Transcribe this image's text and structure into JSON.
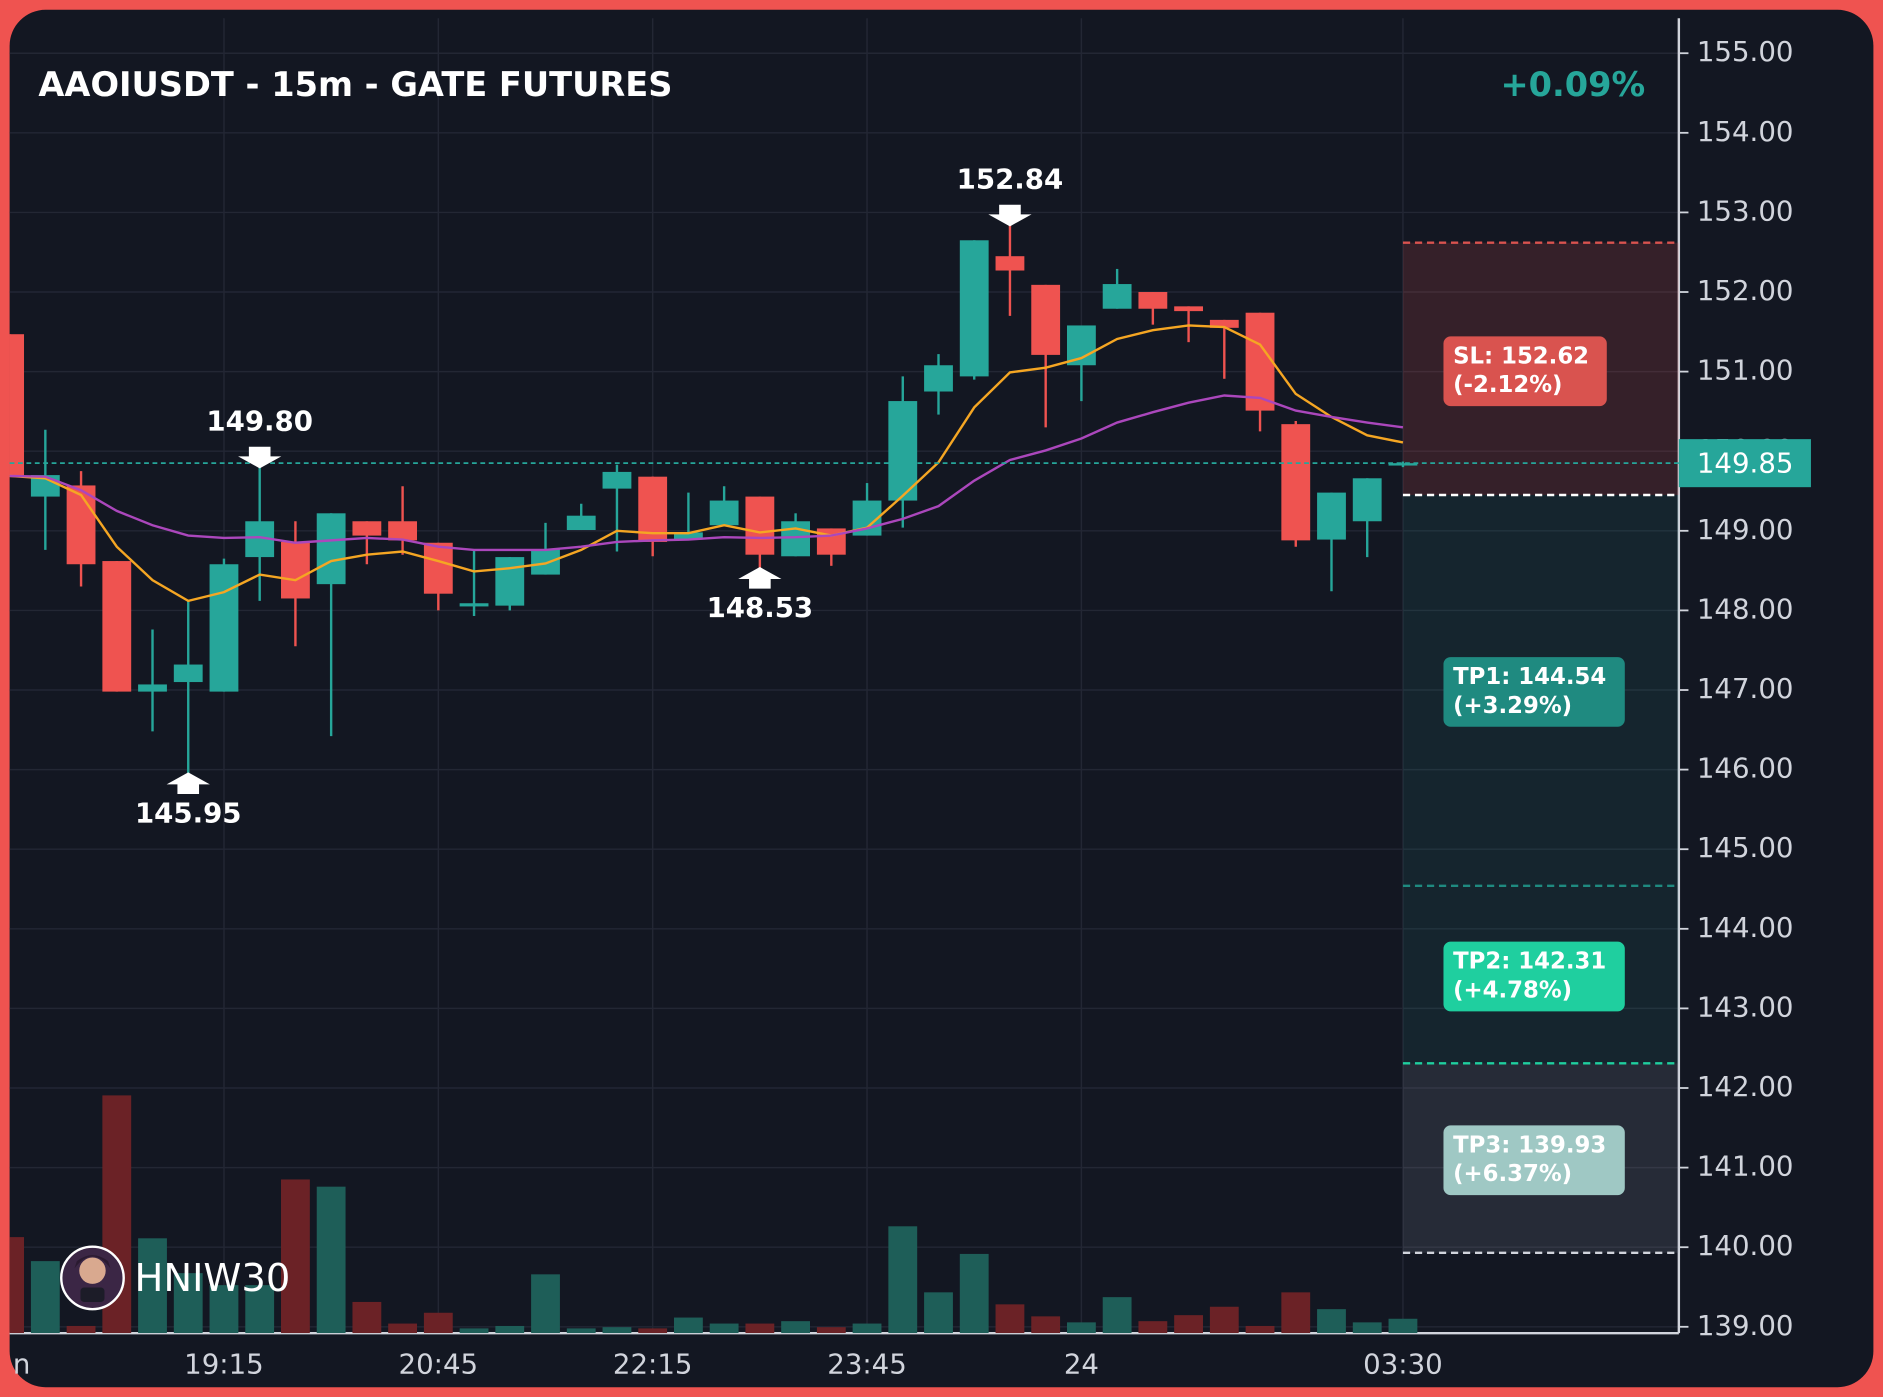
{
  "chart_data": {
    "type": "candlestick",
    "title": "AAOIUSDT - 15m - GATE FUTURES",
    "change": "+0.09%",
    "watermark": "HNIW30",
    "categories": [
      "n",
      null,
      null,
      null,
      null,
      null,
      "19:15",
      null,
      null,
      null,
      null,
      null,
      "20:45",
      null,
      null,
      null,
      null,
      null,
      "22:15",
      null,
      null,
      null,
      null,
      null,
      "23:45",
      null,
      null,
      null,
      null,
      null,
      "24",
      null,
      null,
      null,
      null,
      null,
      null,
      null,
      null,
      "03:30"
    ],
    "open": [
      151.47,
      149.43,
      149.57,
      148.62,
      146.98,
      147.1,
      146.98,
      148.67,
      148.86,
      148.33,
      149.12,
      149.12,
      148.85,
      148.05,
      148.06,
      148.45,
      149.01,
      149.53,
      149.68,
      148.89,
      149.07,
      149.43,
      148.68,
      149.03,
      148.94,
      149.38,
      150.75,
      150.94,
      152.45,
      152.09,
      151.08,
      151.79,
      152.0,
      151.82,
      151.65,
      151.74,
      150.34,
      148.89,
      149.12,
      149.82
    ],
    "high": [
      151.47,
      150.27,
      149.75,
      148.62,
      147.76,
      148.12,
      148.65,
      149.8,
      149.12,
      149.22,
      149.12,
      149.56,
      148.85,
      148.76,
      148.67,
      149.1,
      149.34,
      149.83,
      149.68,
      149.48,
      149.56,
      149.43,
      149.22,
      149.03,
      149.6,
      150.94,
      151.22,
      152.65,
      152.84,
      152.09,
      151.58,
      152.29,
      152.0,
      151.82,
      151.65,
      151.74,
      150.38,
      149.48,
      149.66,
      149.87
    ],
    "low": [
      149.7,
      148.76,
      148.3,
      146.98,
      146.48,
      145.95,
      146.98,
      148.12,
      147.55,
      146.42,
      148.58,
      148.7,
      148.0,
      147.93,
      148.0,
      148.45,
      149.01,
      148.74,
      148.68,
      148.89,
      149.07,
      148.53,
      148.68,
      148.56,
      148.94,
      149.04,
      150.46,
      150.9,
      151.7,
      150.3,
      150.63,
      151.79,
      151.59,
      151.37,
      150.91,
      150.25,
      148.8,
      148.24,
      148.67,
      149.8
    ],
    "close": [
      149.7,
      149.7,
      148.58,
      146.98,
      147.07,
      147.32,
      148.58,
      149.12,
      148.15,
      149.22,
      148.94,
      148.88,
      148.21,
      148.09,
      148.67,
      148.77,
      149.19,
      149.74,
      148.86,
      148.98,
      149.38,
      148.7,
      149.12,
      148.7,
      149.38,
      150.63,
      151.08,
      152.65,
      152.27,
      151.21,
      151.58,
      152.1,
      151.79,
      151.76,
      151.55,
      150.51,
      148.88,
      149.48,
      149.66,
      149.85
    ],
    "up_color": "#26a69a",
    "down_color": "#ef5350",
    "ma": [
      {
        "color": "#f5a623",
        "values": [
          149.69,
          149.66,
          149.45,
          148.8,
          148.38,
          148.12,
          148.23,
          148.45,
          148.38,
          148.62,
          148.7,
          148.74,
          148.62,
          148.49,
          148.53,
          148.59,
          148.76,
          149.0,
          148.97,
          148.97,
          149.07,
          148.98,
          149.03,
          148.94,
          149.04,
          149.44,
          149.86,
          150.55,
          150.99,
          151.05,
          151.17,
          151.41,
          151.52,
          151.58,
          151.56,
          151.34,
          150.72,
          150.43,
          150.2,
          150.11
        ]
      },
      {
        "color": "#ab47bc",
        "values": [
          149.69,
          149.68,
          149.51,
          149.25,
          149.07,
          148.94,
          148.91,
          148.92,
          148.85,
          148.88,
          148.91,
          148.89,
          148.8,
          148.76,
          148.76,
          148.76,
          148.8,
          148.86,
          148.88,
          148.89,
          148.92,
          148.91,
          148.92,
          148.94,
          149.03,
          149.15,
          149.31,
          149.63,
          149.89,
          150.01,
          150.16,
          150.36,
          150.49,
          150.61,
          150.7,
          150.67,
          150.51,
          150.43,
          150.36,
          150.3
        ]
      }
    ],
    "volume": {
      "up_color": "#1e5e58",
      "down_color": "#6b2226",
      "values": [
        80,
        60,
        6,
        198,
        79,
        50,
        40,
        40,
        128,
        122,
        26,
        8,
        17,
        4,
        6,
        49,
        4,
        5,
        4,
        13,
        8,
        8,
        10,
        5,
        8,
        89,
        34,
        66,
        24,
        14,
        9,
        30,
        10,
        15,
        22,
        6,
        34,
        20,
        9,
        12
      ]
    },
    "ylim": [
      138.92,
      155.44
    ],
    "yticks": [
      {
        "value": 139,
        "label": "139.00"
      },
      {
        "value": 140,
        "label": "140.00"
      },
      {
        "value": 141,
        "label": "141.00"
      },
      {
        "value": 142,
        "label": "142.00"
      },
      {
        "value": 143,
        "label": "143.00"
      },
      {
        "value": 144,
        "label": "144.00"
      },
      {
        "value": 145,
        "label": "145.00"
      },
      {
        "value": 146,
        "label": "146.00"
      },
      {
        "value": 147,
        "label": "147.00"
      },
      {
        "value": 148,
        "label": "148.00"
      },
      {
        "value": 149,
        "label": "149.00"
      },
      {
        "value": 150,
        "label": "150.00"
      },
      {
        "value": 151,
        "label": "151.00"
      },
      {
        "value": 152,
        "label": "152.00"
      },
      {
        "value": 153,
        "label": "153.00"
      },
      {
        "value": 154,
        "label": "154.00"
      },
      {
        "value": 155,
        "label": "155.00"
      }
    ],
    "grid": true,
    "last_price": {
      "value": 149.85,
      "label": "149.85",
      "color": "#26a69a"
    },
    "entry": 149.45,
    "stop": {
      "price": 152.62,
      "label": "SL: 152.62",
      "pct": "(-2.12%)",
      "color": "#d9534f"
    },
    "targets": [
      {
        "price": 144.54,
        "label": "TP1: 144.54",
        "pct": "(+3.29%)",
        "color": "#1f8a80"
      },
      {
        "price": 142.31,
        "label": "TP2: 142.31",
        "pct": "(+4.78%)",
        "color": "#1fcf9f"
      },
      {
        "price": 139.93,
        "label": "TP3: 139.93",
        "pct": "(+6.37%)",
        "color": "#9fc8c4"
      }
    ],
    "annotations": [
      {
        "index": 7,
        "position": "above",
        "value": 149.8,
        "label": "149.80"
      },
      {
        "index": 5,
        "position": "below",
        "value": 145.95,
        "label": "145.95"
      },
      {
        "index": 21,
        "position": "below",
        "value": 148.53,
        "label": "148.53"
      },
      {
        "index": 28,
        "position": "above",
        "value": 152.84,
        "label": "152.84"
      }
    ]
  }
}
